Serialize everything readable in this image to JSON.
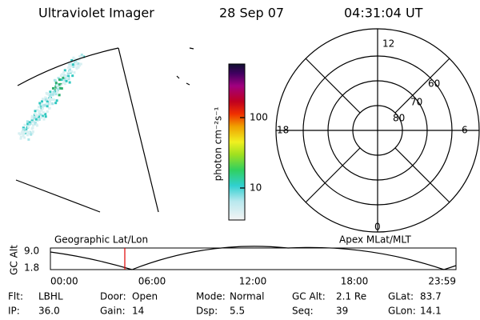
{
  "header": {
    "instrument": "Ultraviolet Imager",
    "date": "28 Sep 07",
    "time": "04:31:04 UT"
  },
  "colorbar": {
    "label": "photon cm⁻²s⁻¹",
    "ticks": [
      "100",
      "10"
    ]
  },
  "polar": {
    "top": "12",
    "right": "6",
    "bottom": "0",
    "left": "18",
    "rings": [
      "60",
      "70",
      "80"
    ]
  },
  "altitude_plot": {
    "ylabel": "GC Alt",
    "yticks": [
      "9.0",
      "1.8"
    ],
    "left_title": "Geographic Lat/Lon",
    "right_title": "Apex MLat/MLT",
    "xticks": [
      "00:00",
      "06:00",
      "12:00",
      "18:00",
      "23:59"
    ]
  },
  "info": [
    [
      {
        "label": "Flt:",
        "value": "LBHL"
      },
      {
        "label": "Door:",
        "value": "Open"
      },
      {
        "label": "Mode:",
        "value": "Normal"
      },
      {
        "label": "GC Alt:",
        "value": "2.1 Re"
      },
      {
        "label": "GLat:",
        "value": "83.7"
      }
    ],
    [
      {
        "label": "IP:",
        "value": "36.0"
      },
      {
        "label": "Gain:",
        "value": "14"
      },
      {
        "label": "Dsp:",
        "value": "5.5"
      },
      {
        "label": "Seq:",
        "value": "39"
      },
      {
        "label": "GLon:",
        "value": "14.1"
      }
    ]
  ]
}
